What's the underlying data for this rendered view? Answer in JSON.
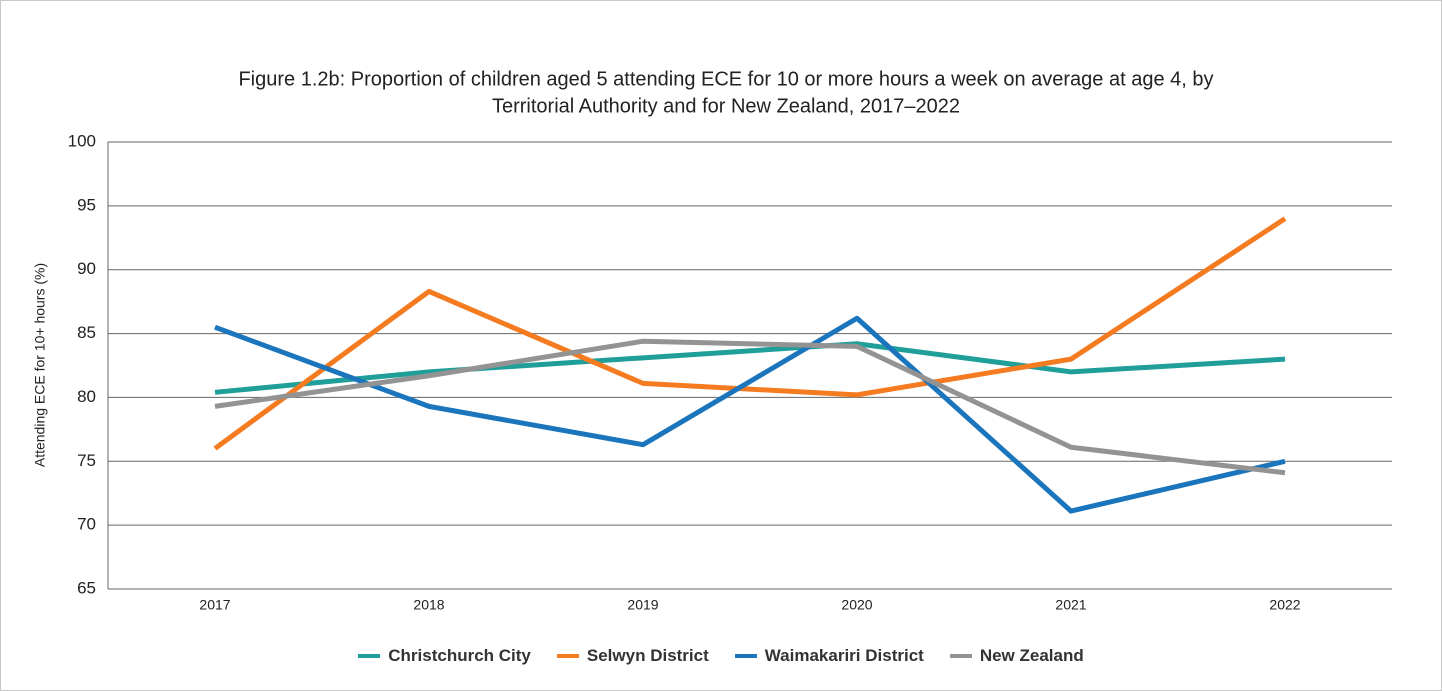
{
  "chart_data": {
    "type": "line",
    "title": [
      "Figure 1.2b: Proportion of children aged 5 attending ECE for 10 or more hours a week on average at age 4, by",
      "Territorial Authority and for New Zealand,  2017–2022"
    ],
    "y_label": "Attending ECE for 10+ hours (%)",
    "categories": [
      "2017",
      "2018",
      "2019",
      "2020",
      "2021",
      "2022"
    ],
    "series": [
      {
        "name": "Christchurch City",
        "color": "#1f9e9a",
        "values": [
          80.4,
          82.0,
          83.1,
          84.2,
          82.0,
          83.0
        ]
      },
      {
        "name": "Selwyn District",
        "color": "#f47b20",
        "values": [
          76.0,
          88.3,
          81.1,
          80.2,
          83.0,
          94.0
        ]
      },
      {
        "name": "Waimakariri District",
        "color": "#1b75bc",
        "values": [
          85.5,
          79.3,
          76.3,
          86.2,
          71.1,
          75.0
        ]
      },
      {
        "name": "New Zealand",
        "color": "#939393",
        "values": [
          79.3,
          81.7,
          84.4,
          84.0,
          76.1,
          74.1
        ]
      }
    ],
    "ylim": [
      65,
      100
    ],
    "yticks": [
      65,
      70,
      75,
      80,
      85,
      90,
      95,
      100
    ],
    "grid": true,
    "legend": "bottom"
  }
}
